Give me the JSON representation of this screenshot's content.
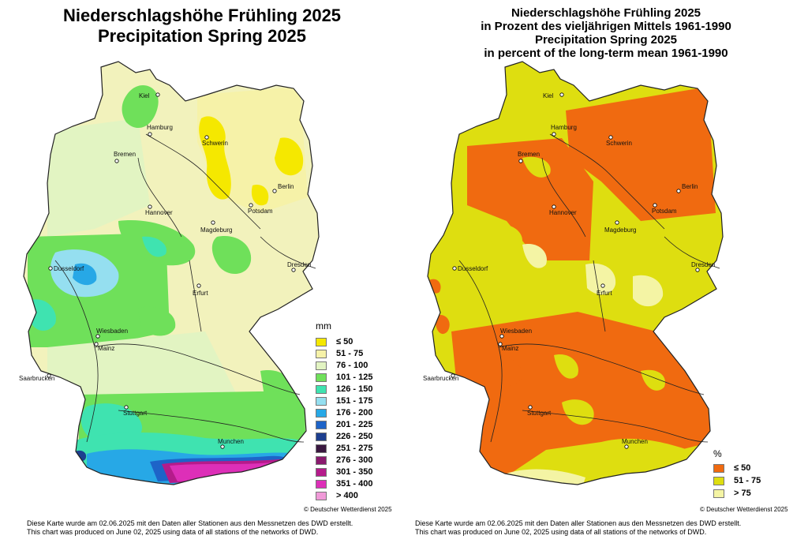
{
  "left_map": {
    "title_line1": "Niederschlagshöhe Frühling 2025",
    "title_line2": "Precipitation Spring 2025",
    "legend_unit": "mm",
    "legend": [
      {
        "label": "≤ 50",
        "color": "#f5e800"
      },
      {
        "label": "51 - 75",
        "color": "#f6f2a8"
      },
      {
        "label": "76 - 100",
        "color": "#e2f4c2"
      },
      {
        "label": "101 - 125",
        "color": "#6fe05a"
      },
      {
        "label": "126 - 150",
        "color": "#3fe3b0"
      },
      {
        "label": "151 - 175",
        "color": "#95dff0"
      },
      {
        "label": "176 - 200",
        "color": "#27a8e6"
      },
      {
        "label": "201 - 225",
        "color": "#1e64c8"
      },
      {
        "label": "226 - 250",
        "color": "#1d3f8f"
      },
      {
        "label": "251 - 275",
        "color": "#3a1840"
      },
      {
        "label": "276 - 300",
        "color": "#8a1a6e"
      },
      {
        "label": "301 - 350",
        "color": "#b51b8b"
      },
      {
        "label": "351 - 400",
        "color": "#dd2fb8"
      },
      {
        "label": "> 400",
        "color": "#f09ad8"
      }
    ],
    "cities": [
      "Kiel",
      "Hamburg",
      "Schwerin",
      "Bremen",
      "Berlin",
      "Potsdam",
      "Hannover",
      "Magdeburg",
      "Dresden",
      "Dusseldorf",
      "Erfurt",
      "Wiesbaden",
      "Mainz",
      "Saarbrucken",
      "Stuttgart",
      "Munchen"
    ],
    "copyright": "© Deutscher Wetterdienst 2025",
    "footnote_de": "Diese Karte wurde am 02.06.2025 mit den Daten aller Stationen aus den Messnetzen des DWD erstellt.",
    "footnote_en": "This chart was produced on June 02, 2025 using data of all stations of the networks of DWD."
  },
  "right_map": {
    "title_line1": "Niederschlagshöhe Frühling 2025",
    "title_line2": "in Prozent des vieljährigen Mittels 1961-1990",
    "title_line3": "Precipitation Spring 2025",
    "title_line4": "in percent of the long-term mean 1961-1990",
    "legend_unit": "%",
    "legend": [
      {
        "label": "≤ 50",
        "color": "#f06a10"
      },
      {
        "label": "51 - 75",
        "color": "#dede10"
      },
      {
        "label": "> 75",
        "color": "#f4f4a4"
      }
    ],
    "cities": [
      "Kiel",
      "Hamburg",
      "Schwerin",
      "Bremen",
      "Berlin",
      "Potsdam",
      "Hannover",
      "Magdeburg",
      "Dresden",
      "Dusseldorf",
      "Erfurt",
      "Wiesbaden",
      "Mainz",
      "Saarbrucken",
      "Stuttgart",
      "Munchen"
    ],
    "copyright": "© Deutscher Wetterdienst 2025",
    "footnote_de": "Diese Karte wurde am 02.06.2025 mit den Daten aller Stationen aus den Messnetzen des DWD erstellt.",
    "footnote_en": "This chart was produced on June 02, 2025 using data of all stations of the networks of DWD."
  }
}
